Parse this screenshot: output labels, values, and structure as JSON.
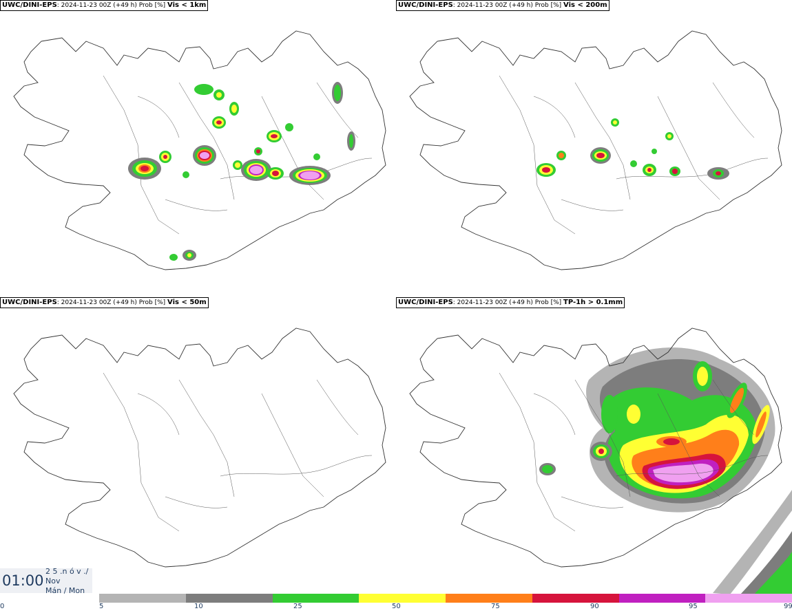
{
  "panels": [
    {
      "source": "UWC/DINI-EPS",
      "meta": ": 2024-11-23 00Z (+49 h) Prob [%] ",
      "variable": "Vis < 1km"
    },
    {
      "source": "UWC/DINI-EPS",
      "meta": ": 2024-11-23 00Z (+49 h) Prob [%] ",
      "variable": "Vis < 200m"
    },
    {
      "source": "UWC/DINI-EPS",
      "meta": ": 2024-11-23 00Z (+49 h) Prob [%] ",
      "variable": "Vis < 50m"
    },
    {
      "source": "UWC/DINI-EPS",
      "meta": ": 2024-11-23 00Z (+49 h) Prob [%] ",
      "variable": "TP-1h > 0.1mm"
    }
  ],
  "timebox": {
    "time": "01:00",
    "day": "2 5 .n ó v ./",
    "month": "Nov",
    "weekday": "Mán / Mon"
  },
  "colorbar": {
    "labels": [
      "0",
      "5",
      "10",
      "25",
      "50",
      "75",
      "90",
      "95",
      "99"
    ],
    "colors": [
      "#b4b4b4",
      "#7d7d7d",
      "#33cc33",
      "#ffff33",
      "#ff7f1a",
      "#d6143c",
      "#c020c0",
      "#f0a0f0"
    ]
  }
}
